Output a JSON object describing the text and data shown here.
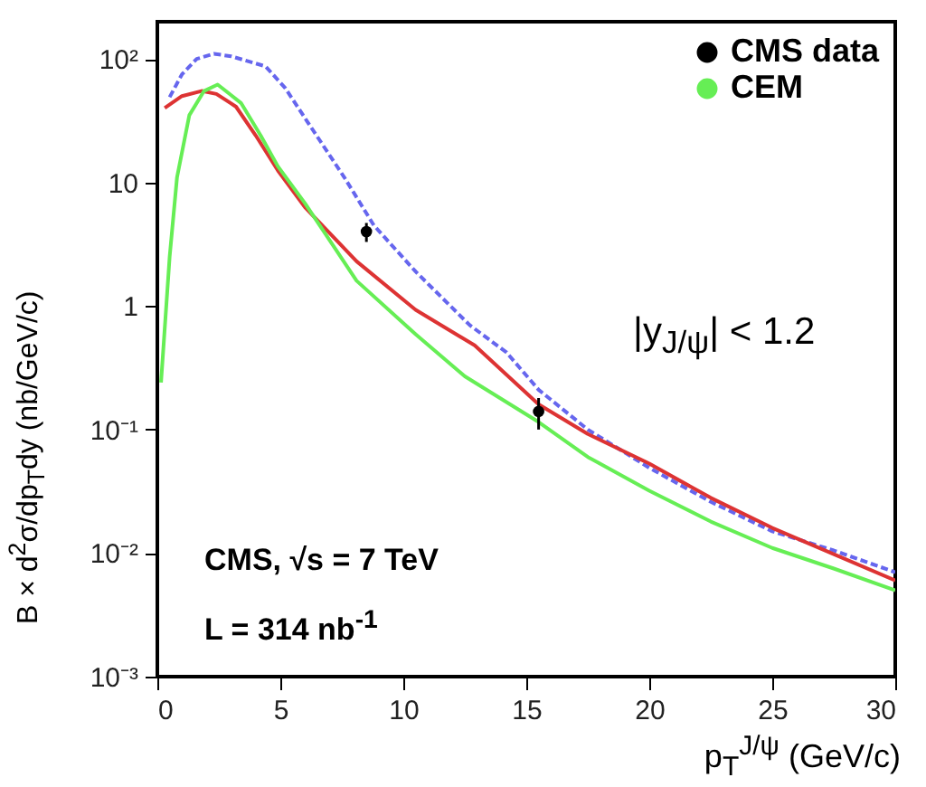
{
  "chart_data": {
    "type": "line",
    "xlabel": "p$_{T}$$^{J/ψ}$ (GeV/c)",
    "ylabel": "B × d$^{2}$σ/dp$_{T}$dy (nb/GeV/c)",
    "annotations": [
      "|y$_{J/ψ}$| < 1.2",
      "CMS, √s = 7 TeV",
      "L = 314 nb$^{-1}$"
    ],
    "log": "y",
    "grid": false,
    "legend": "top right",
    "xlim": [
      0,
      30
    ],
    "xticks": [
      0,
      5,
      10,
      15,
      20,
      25,
      30
    ],
    "ylim": [
      0.001,
      200
    ],
    "yticks": [
      {
        "value": 0.001,
        "label": "10⁻³"
      },
      {
        "value": 0.01,
        "label": "10⁻²"
      },
      {
        "value": 0.1,
        "label": "10⁻¹"
      },
      1,
      10,
      {
        "value": 100,
        "label": "10²"
      }
    ],
    "series": [
      {
        "name": "CMS data",
        "type": "scatter",
        "marker": "circle",
        "color": "#000000",
        "x": [
          8.5,
          15.5
        ],
        "values": [
          4.0,
          0.14
        ],
        "errors": [
          [
            3.3,
            4.7
          ],
          [
            0.1,
            0.18
          ]
        ]
      },
      {
        "color": "#6666ee",
        "line_style": "dashed",
        "x": [
          0.5,
          1.0,
          1.6,
          2.3,
          3.0,
          4.4,
          5.2,
          6.1,
          7.6,
          8.8,
          10.5,
          12.7,
          14.2,
          15.5,
          17.5,
          20,
          22.5,
          25,
          27.5,
          30
        ],
        "values": [
          49,
          75,
          100,
          110,
          105,
          87,
          58,
          31,
          11,
          4.5,
          1.9,
          0.7,
          0.42,
          0.21,
          0.1,
          0.049,
          0.026,
          0.015,
          0.0105,
          0.007
        ]
      },
      {
        "color": "#dd3333",
        "line_style": "solid",
        "x": [
          0.3,
          1.0,
          1.8,
          2.4,
          3.2,
          4.0,
          4.9,
          6.0,
          8.1,
          10.5,
          12.9,
          15.5,
          17.5,
          20,
          22.5,
          25,
          27.5,
          30
        ],
        "values": [
          40,
          50,
          55,
          52,
          41,
          24,
          12.5,
          6.3,
          2.3,
          0.93,
          0.48,
          0.16,
          0.092,
          0.053,
          0.028,
          0.016,
          0.0098,
          0.006
        ]
      },
      {
        "name": "CEM",
        "color": "#66ee55",
        "line_style": "solid",
        "x": [
          0.15,
          0.5,
          0.8,
          1.3,
          1.9,
          2.45,
          3.4,
          4.2,
          4.9,
          6.0,
          8.1,
          10.5,
          12.5,
          15.5,
          17.5,
          20,
          22.5,
          25,
          27.5,
          30
        ],
        "values": [
          0.24,
          2.5,
          11,
          35,
          55,
          62,
          44,
          24,
          13.5,
          6.8,
          1.6,
          0.59,
          0.27,
          0.115,
          0.06,
          0.032,
          0.018,
          0.011,
          0.0075,
          0.005
        ]
      }
    ]
  }
}
